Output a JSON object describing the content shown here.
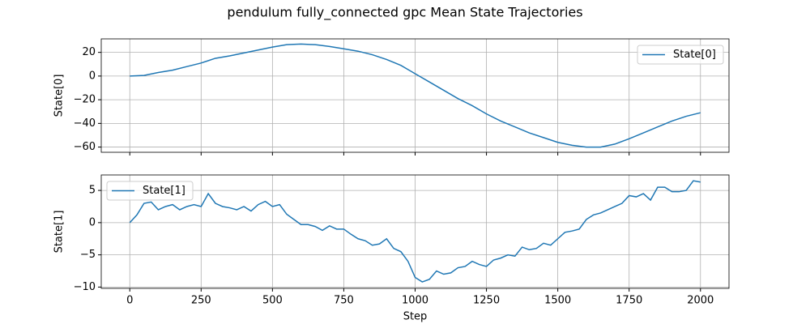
{
  "title": "pendulum fully_connected gpc Mean State Trajectories",
  "chart_data": [
    {
      "type": "line",
      "ylabel": "State[0]",
      "x": [
        0,
        50,
        100,
        150,
        200,
        250,
        300,
        350,
        400,
        450,
        500,
        550,
        600,
        650,
        700,
        750,
        800,
        850,
        900,
        950,
        1000,
        1050,
        1100,
        1150,
        1200,
        1250,
        1300,
        1350,
        1400,
        1450,
        1500,
        1550,
        1600,
        1650,
        1700,
        1750,
        1800,
        1850,
        1900,
        1950,
        2000
      ],
      "series": [
        {
          "name": "State[0]",
          "color": "#1f77b4",
          "values": [
            0,
            0.5,
            3,
            5,
            8,
            11,
            15,
            17,
            19.5,
            22,
            24.5,
            26.5,
            27,
            26.5,
            25,
            23,
            21,
            18,
            14,
            9,
            2,
            -5,
            -12,
            -19,
            -25,
            -32,
            -38,
            -43,
            -48,
            -52,
            -56,
            -58.5,
            -60,
            -60,
            -57.5,
            -53,
            -48,
            -43,
            -38,
            -34,
            -31
          ]
        }
      ],
      "xlim": [
        -100,
        2100
      ],
      "ylim": [
        -64.4,
        31.4
      ],
      "xticks": [
        0,
        250,
        500,
        750,
        1000,
        1250,
        1500,
        1750,
        2000
      ],
      "yticks": [
        {
          "value": -60,
          "label": "−60"
        },
        {
          "value": -40,
          "label": "−40"
        },
        {
          "value": -20,
          "label": "−20"
        },
        0,
        20
      ],
      "grid": true,
      "legend": "upper right"
    },
    {
      "type": "line",
      "ylabel": "State[1]",
      "xlabel": "Step",
      "x": [
        0,
        25,
        50,
        75,
        100,
        125,
        150,
        175,
        200,
        225,
        250,
        275,
        300,
        325,
        350,
        375,
        400,
        425,
        450,
        475,
        500,
        525,
        550,
        575,
        600,
        625,
        650,
        675,
        700,
        725,
        750,
        775,
        800,
        825,
        850,
        875,
        900,
        925,
        950,
        975,
        1000,
        1025,
        1050,
        1075,
        1100,
        1125,
        1150,
        1175,
        1200,
        1225,
        1250,
        1275,
        1300,
        1325,
        1350,
        1375,
        1400,
        1425,
        1450,
        1475,
        1500,
        1525,
        1550,
        1575,
        1600,
        1625,
        1650,
        1675,
        1700,
        1725,
        1750,
        1775,
        1800,
        1825,
        1850,
        1875,
        1900,
        1925,
        1950,
        1975,
        2000
      ],
      "series": [
        {
          "name": "State[1]",
          "color": "#1f77b4",
          "values": [
            0,
            1.2,
            3.0,
            3.2,
            2.0,
            2.5,
            2.8,
            2.0,
            2.5,
            2.8,
            2.5,
            4.5,
            3.0,
            2.5,
            2.3,
            2.0,
            2.5,
            1.8,
            2.8,
            3.3,
            2.5,
            2.8,
            1.3,
            0.5,
            -0.3,
            -0.3,
            -0.6,
            -1.2,
            -0.5,
            -1.0,
            -1.0,
            -1.8,
            -2.5,
            -2.8,
            -3.5,
            -3.3,
            -2.5,
            -4.0,
            -4.5,
            -6.0,
            -8.5,
            -9.2,
            -8.8,
            -7.5,
            -8.0,
            -7.8,
            -7.0,
            -6.8,
            -6.0,
            -6.5,
            -6.8,
            -5.8,
            -5.5,
            -5.0,
            -5.2,
            -3.8,
            -4.2,
            -4.0,
            -3.2,
            -3.5,
            -2.5,
            -1.5,
            -1.3,
            -1.0,
            0.5,
            1.2,
            1.5,
            2.0,
            2.5,
            3.0,
            4.2,
            4.0,
            4.5,
            3.5,
            5.5,
            5.5,
            4.8,
            4.8,
            5.0,
            6.5,
            6.3
          ]
        }
      ],
      "xlim": [
        -100,
        2100
      ],
      "ylim": [
        -10.2,
        7.4
      ],
      "xticks": [
        0,
        250,
        500,
        750,
        1000,
        1250,
        1500,
        1750,
        2000
      ],
      "yticks": [
        {
          "value": -10,
          "label": "−10"
        },
        {
          "value": -5,
          "label": "−5"
        },
        0,
        5
      ],
      "grid": true,
      "legend": "upper left"
    }
  ]
}
